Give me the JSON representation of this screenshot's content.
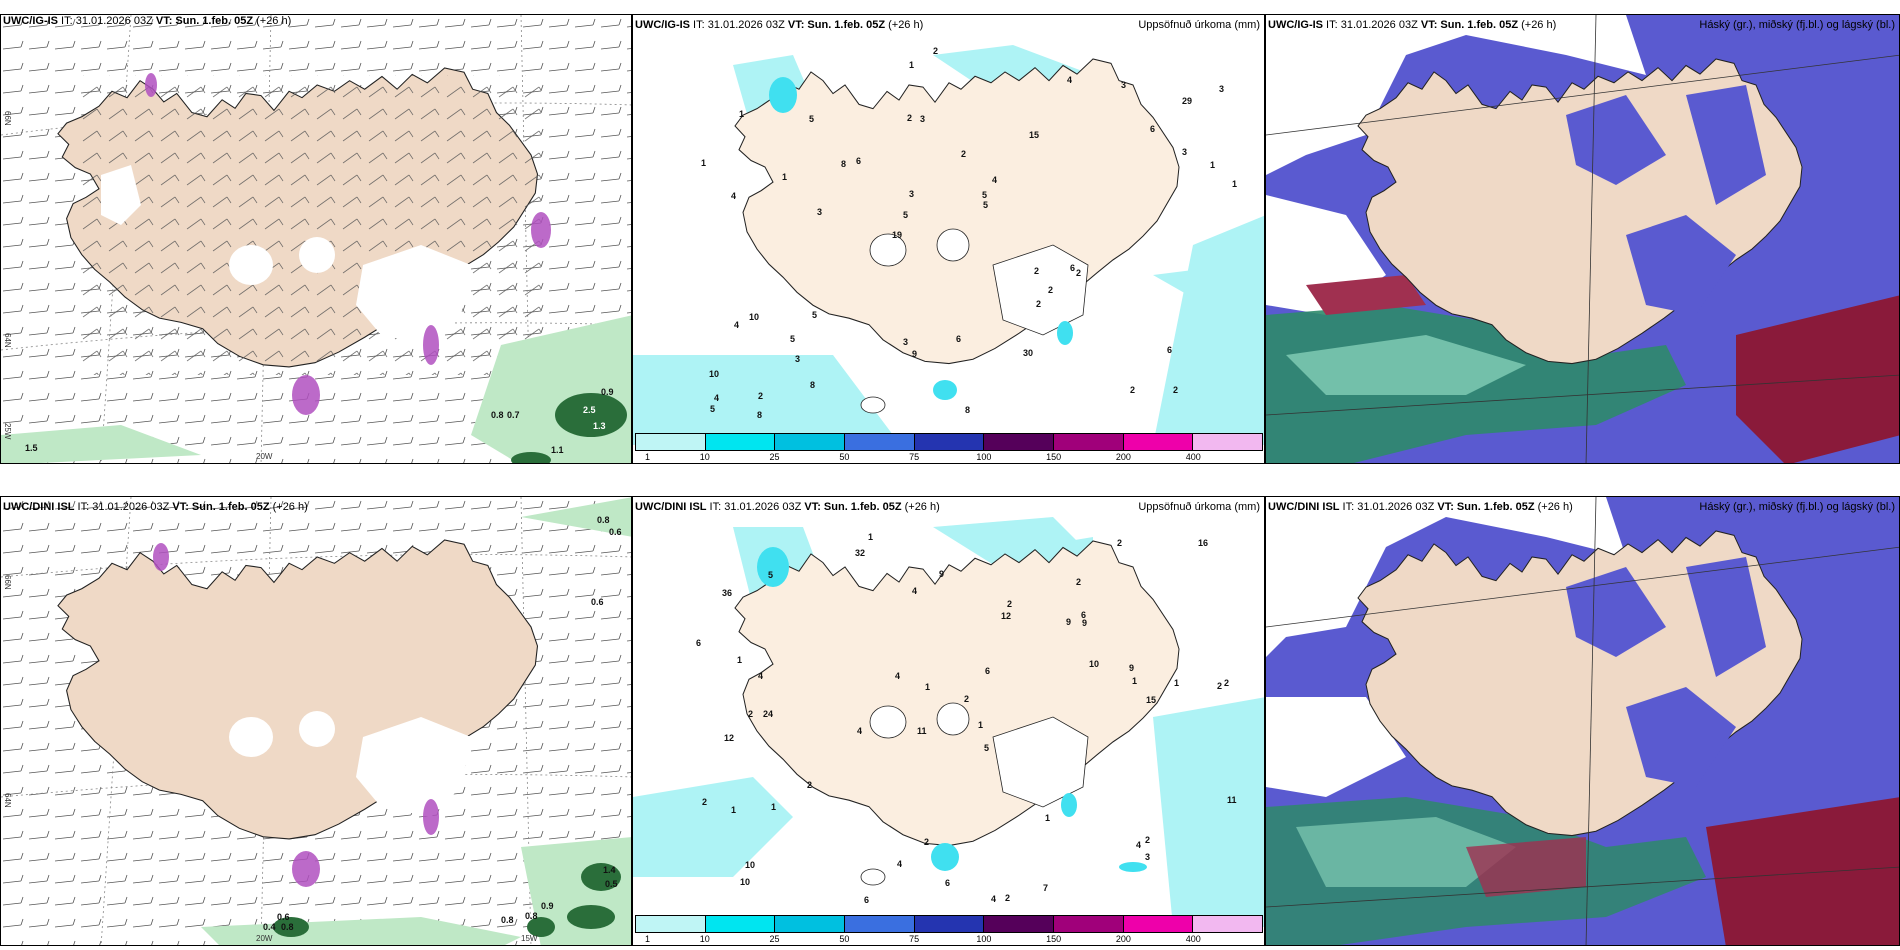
{
  "panels": {
    "top_left": {
      "title_model": "UWC/IG-IS",
      "title_rest": " IT: 31.01.2026 03Z ",
      "title_vt": "VT: Sun. 1.feb. 05Z",
      "title_lead": " (+26 h)"
    },
    "top_mid": {
      "title_model": "UWC/IG-IS",
      "title_rest": " IT: 31.01.2026 03Z ",
      "title_vt": "VT: Sun. 1.feb. 05Z",
      "title_lead": " (+26 h)",
      "right_label": "Uppsöfnuð úrkoma (mm)"
    },
    "top_right": {
      "title_model": "UWC/IG-IS",
      "title_rest": " IT: 31.01.2026 03Z ",
      "title_vt": "VT: Sun. 1.feb. 05Z",
      "title_lead": " (+26 h)",
      "right_label": "Háský (gr.), miðský (fj.bl.) og lágský (bl.)"
    },
    "bottom_left": {
      "title_model": "UWC/DINI ISL",
      "title_rest": " IT: 31.01.2026 03Z ",
      "title_vt": "VT: Sun. 1.feb. 05Z",
      "title_lead": " (+26 h)"
    },
    "bottom_mid": {
      "title_model": "UWC/DINI ISL",
      "title_rest": " IT: 31.01.2026 03Z ",
      "title_vt": "VT: Sun. 1.feb. 05Z",
      "title_lead": " (+26 h)",
      "right_label": "Uppsöfnuð úrkoma (mm)"
    },
    "bottom_right": {
      "title_model": "UWC/DINI ISL",
      "title_rest": " IT: 31.01.2026 03Z ",
      "title_vt": "VT: Sun. 1.feb. 05Z",
      "title_lead": " (+26 h)",
      "right_label": "Háský (gr.), miðský (fj.bl.) og lágský (bl.)"
    }
  },
  "axis_labels": {
    "lat66": "66N",
    "lat64": "64N",
    "lon20": "20W",
    "lon15": "15W",
    "lon25": "25W"
  },
  "colorbar": {
    "ticks": [
      "1",
      "10",
      "25",
      "50",
      "75",
      "100",
      "150",
      "200",
      "400"
    ],
    "colors": [
      "#bff5f5",
      "#00e5f0",
      "#00c0e0",
      "#3a6fe0",
      "#2434b0",
      "#55005a",
      "#a0007a",
      "#ee00aa",
      "#f2b8f0"
    ]
  },
  "precip_top": [
    "2",
    "4",
    "29",
    "19",
    "15",
    "2",
    "2",
    "2",
    "10",
    "6",
    "10",
    "3",
    "3",
    "4",
    "2",
    "1",
    "1",
    "1",
    "2",
    "3",
    "5",
    "3",
    "3",
    "5",
    "4",
    "5",
    "2",
    "6",
    "6",
    "8",
    "8",
    "1",
    "2",
    "8",
    "1",
    "5",
    "4",
    "9",
    "5",
    "4",
    "6",
    "3",
    "2",
    "30",
    "5",
    "8",
    "5",
    "6",
    "3",
    "2",
    "3",
    "1"
  ],
  "precip_bottom": [
    "1",
    "2",
    "2",
    "11",
    "5",
    "24",
    "36",
    "9",
    "12",
    "12",
    "2",
    "10",
    "32",
    "4",
    "4",
    "2",
    "2",
    "2",
    "10",
    "2",
    "4",
    "2",
    "2",
    "1",
    "2",
    "1",
    "1",
    "1",
    "2",
    "1",
    "4",
    "2",
    "1",
    "4",
    "1",
    "11",
    "9",
    "4",
    "16",
    "9",
    "10",
    "6",
    "7",
    "5",
    "6",
    "9",
    "3",
    "6",
    "6",
    "1",
    "4",
    "15",
    "6"
  ],
  "vis_values_top": [
    "2.5",
    "0.9",
    "1.3",
    "0.8",
    "0.7",
    "1.5",
    "1.1"
  ],
  "vis_values_bottom": [
    "0.8",
    "0.6",
    "0.6",
    "1.4",
    "0.5",
    "0.6",
    "0.4",
    "0.8",
    "0.8",
    "0.8",
    "0.9"
  ]
}
